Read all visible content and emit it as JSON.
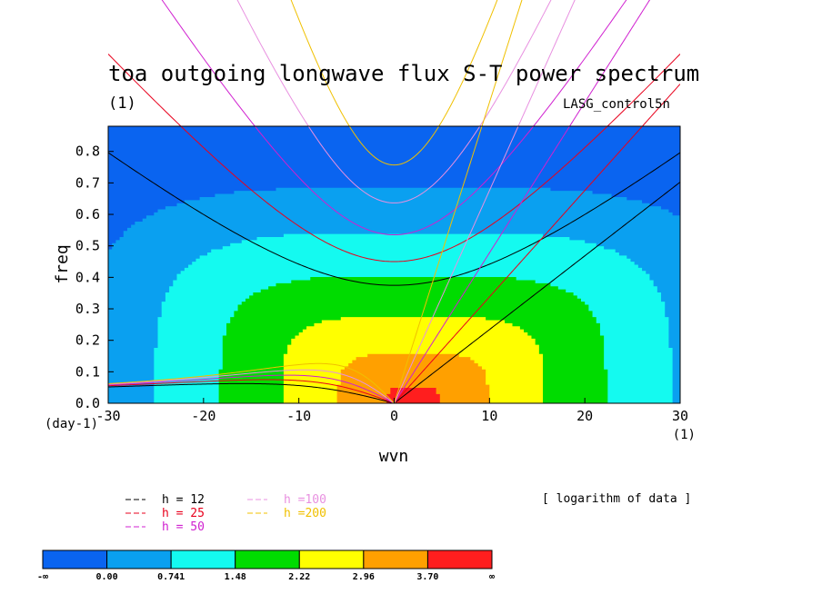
{
  "chart_data": {
    "type": "heatmap",
    "title": "toa outgoing longwave flux S-T power spectrum",
    "subtitle": "(1)",
    "case_label": "LASG_control5n",
    "xlabel": "wvn",
    "ylabel": "freq",
    "y_unit_label": "(day-1)",
    "x_unit_label": "(1)",
    "xlim": [
      -30,
      30
    ],
    "ylim": [
      0,
      0.88
    ],
    "xticks": [
      -30,
      -20,
      -10,
      0,
      10,
      20,
      30
    ],
    "yticks": [
      0.0,
      0.1,
      0.2,
      0.3,
      0.4,
      0.5,
      0.6,
      0.7,
      0.8
    ],
    "xtick_labels": [
      "-30",
      "-20",
      "-10",
      "0",
      "10",
      "20",
      "30"
    ],
    "ytick_labels": [
      "0.0",
      "0.1",
      "0.2",
      "0.3",
      "0.4",
      "0.5",
      "0.6",
      "0.7",
      "0.8"
    ],
    "data_note": "[ logarithm of data ]",
    "colorbar": {
      "levels": [
        "-∞",
        "0.00",
        "0.741",
        "1.48",
        "2.22",
        "2.96",
        "3.70",
        "∞"
      ],
      "colors": [
        "#0a64f0",
        "#0aa0f0",
        "#14faf0",
        "#00dc00",
        "#ffff00",
        "#ffa000",
        "#ff1e1e"
      ]
    },
    "contour_fill_levels": [
      {
        "level": 1,
        "color": "#0aa0f0"
      },
      {
        "level": 2,
        "color": "#14faf0"
      },
      {
        "level": 3,
        "color": "#00dc00"
      },
      {
        "level": 4,
        "color": "#ffff00"
      },
      {
        "level": 5,
        "color": "#ffa000"
      },
      {
        "level": 6,
        "color": "#ff1e1e"
      }
    ],
    "dispersion_curves": [
      {
        "label": "h = 12",
        "h": 12,
        "color": "#000000"
      },
      {
        "label": "h = 25",
        "h": 25,
        "color": "#e8001c"
      },
      {
        "label": "h = 50",
        "h": 50,
        "color": "#d020d0"
      },
      {
        "label": "h =100",
        "h": 100,
        "color": "#e890e0"
      },
      {
        "label": "h =200",
        "h": 200,
        "color": "#f0c000"
      }
    ]
  }
}
